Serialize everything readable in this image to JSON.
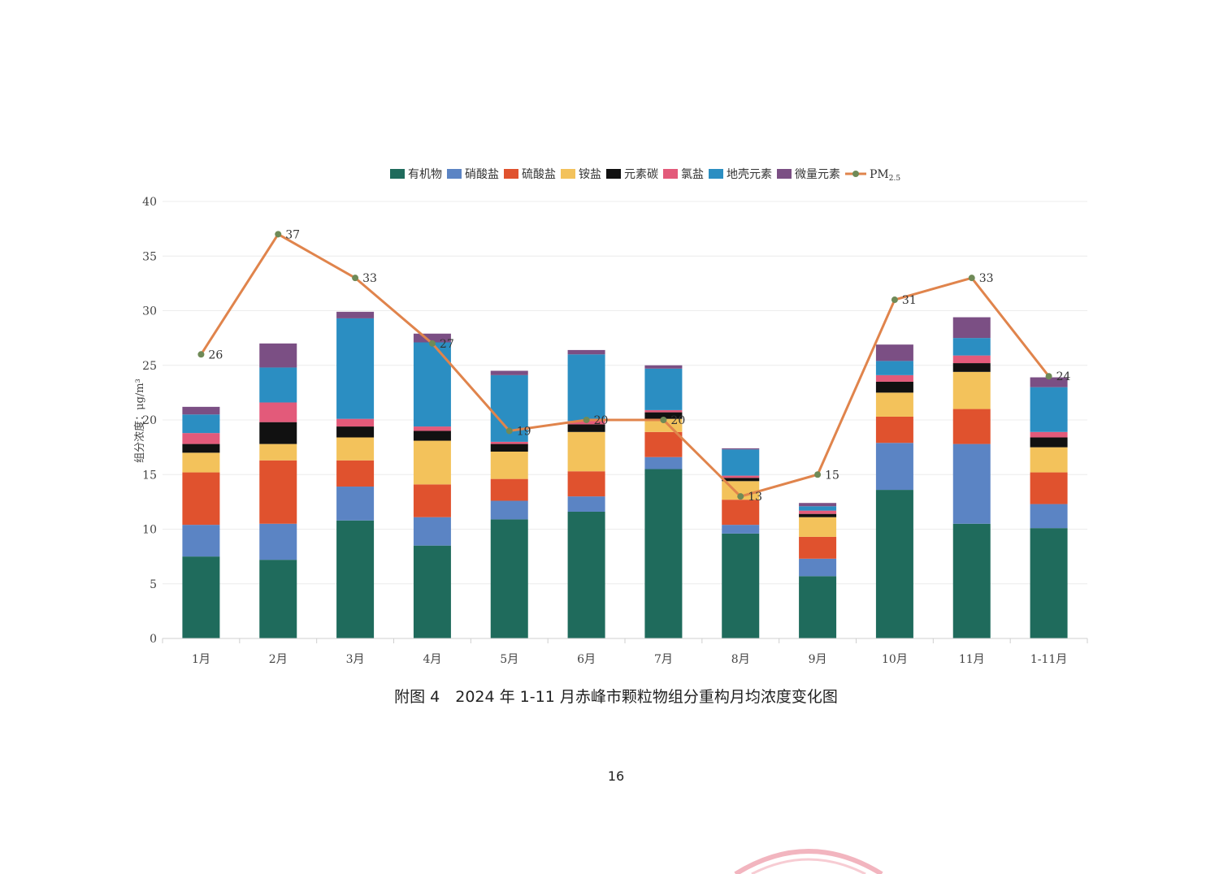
{
  "chart_data": {
    "type": "bar",
    "stacked": true,
    "title": "",
    "xlabel": "",
    "ylabel": "组分浓度：μg/m³",
    "ylim": [
      0,
      40
    ],
    "yticks": [
      0,
      5,
      10,
      15,
      20,
      25,
      30,
      35,
      40
    ],
    "grid": true,
    "legend_position": "top-center",
    "categories": [
      "1月",
      "2月",
      "3月",
      "4月",
      "5月",
      "6月",
      "7月",
      "8月",
      "9月",
      "10月",
      "11月",
      "1-11月"
    ],
    "series": [
      {
        "name": "有机物",
        "color": "#1f6b5c",
        "values": [
          7.5,
          7.2,
          10.8,
          8.5,
          10.9,
          11.6,
          15.5,
          9.6,
          5.7,
          13.6,
          10.5,
          10.1
        ]
      },
      {
        "name": "硝酸盐",
        "color": "#5b84c4",
        "values": [
          2.9,
          3.3,
          3.1,
          2.6,
          1.7,
          1.4,
          1.1,
          0.8,
          1.6,
          4.3,
          7.3,
          2.2
        ]
      },
      {
        "name": "硫酸盐",
        "color": "#e0522e",
        "values": [
          4.8,
          5.8,
          2.4,
          3.0,
          2.0,
          2.3,
          2.3,
          2.3,
          2.0,
          2.4,
          3.2,
          2.9
        ]
      },
      {
        "name": "铵盐",
        "color": "#f3c25b",
        "values": [
          1.8,
          1.5,
          2.1,
          4.0,
          2.5,
          3.6,
          1.2,
          1.7,
          1.8,
          2.2,
          3.4,
          2.3
        ]
      },
      {
        "name": "元素碳",
        "color": "#111111",
        "values": [
          0.8,
          2.0,
          1.0,
          0.9,
          0.7,
          0.7,
          0.6,
          0.3,
          0.3,
          1.0,
          0.8,
          0.9
        ]
      },
      {
        "name": "氯盐",
        "color": "#e35a7a",
        "values": [
          1.0,
          1.8,
          0.7,
          0.4,
          0.2,
          0.3,
          0.2,
          0.2,
          0.3,
          0.6,
          0.7,
          0.5
        ]
      },
      {
        "name": "地壳元素",
        "color": "#2b8ec2",
        "values": [
          1.7,
          3.2,
          9.2,
          7.7,
          6.1,
          6.1,
          3.8,
          2.4,
          0.4,
          1.3,
          1.6,
          4.1
        ]
      },
      {
        "name": "微量元素",
        "color": "#7b4f84",
        "values": [
          0.7,
          2.2,
          0.6,
          0.8,
          0.4,
          0.4,
          0.3,
          0.1,
          0.3,
          1.5,
          1.9,
          0.9
        ]
      }
    ],
    "line": {
      "name": "PM2.5",
      "legend_label": "PM",
      "legend_subscript": "2.5",
      "color": "#e0844c",
      "marker_color": "#6f8a57",
      "values": [
        26,
        37,
        33,
        27,
        19,
        20,
        20,
        13,
        15,
        31,
        33,
        24
      ],
      "labels": [
        "26",
        "37",
        "33",
        "27",
        "19",
        "20",
        "20",
        "13",
        "15",
        "31",
        "33",
        "24"
      ]
    }
  },
  "caption": "附图 4　2024 年 1-11 月赤峰市颗粒物组分重构月均浓度变化图",
  "page_number": "16"
}
